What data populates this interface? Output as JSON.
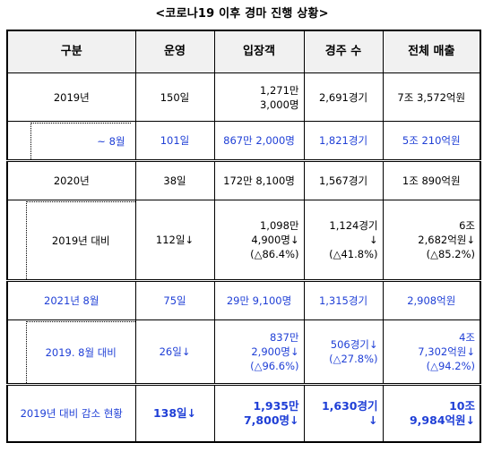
{
  "title": "<코로나19 이후 경마 진행 상황>",
  "headers": [
    "구분",
    "운영",
    "입장객",
    "경주 수",
    "전체 매출"
  ],
  "rows": {
    "y2019": {
      "label": "2019년",
      "ops": "150일",
      "visitors_1": "1,271만",
      "visitors_2": "3,000명",
      "races": "2,691경기",
      "sales": "7조 3,572억원"
    },
    "y2019_aug": {
      "label": "~ 8월",
      "ops": "101일",
      "visitors": "867만 2,000명",
      "races": "1,821경기",
      "sales": "5조 210억원"
    },
    "y2020": {
      "label": "2020년",
      "ops": "38일",
      "visitors": "172만 8,100명",
      "races": "1,567경기",
      "sales": "1조 890억원"
    },
    "y2020_vs": {
      "label": "2019년  대비",
      "ops": "112일↓",
      "visitors_1": "1,098만",
      "visitors_2": "4,900명↓",
      "visitors_3": "(△86.4%)",
      "races_1": "1,124경기",
      "races_2": "↓",
      "races_3": "(△41.8%)",
      "sales_1": "6조",
      "sales_2": "2,682억원↓",
      "sales_3": "(△85.2%)"
    },
    "y2021": {
      "label": "2021년  8월",
      "ops": "75일",
      "visitors": "29만 9,100명",
      "races": "1,315경기",
      "sales": "2,908억원"
    },
    "y2021_vs": {
      "label": "2019.  8월  대비",
      "ops": "26일↓",
      "visitors_1": "837만",
      "visitors_2": "2,900명↓",
      "visitors_3": "(△96.6%)",
      "races_1": "506경기↓",
      "races_2": "(△27.8%)",
      "sales_1": "4조",
      "sales_2": "7,302억원↓",
      "sales_3": "(△94.2%)"
    },
    "total": {
      "label": "2019년  대비  감소  현황",
      "ops": "138일↓",
      "visitors_1": "1,935만",
      "visitors_2": "7,800명↓",
      "races_1": "1,630경기",
      "races_2": "↓",
      "sales_1": "10조",
      "sales_2": "9,984억원↓"
    }
  },
  "colors": {
    "accent_blue": "#1f3fd6",
    "header_bg": "#f1f1f1"
  }
}
